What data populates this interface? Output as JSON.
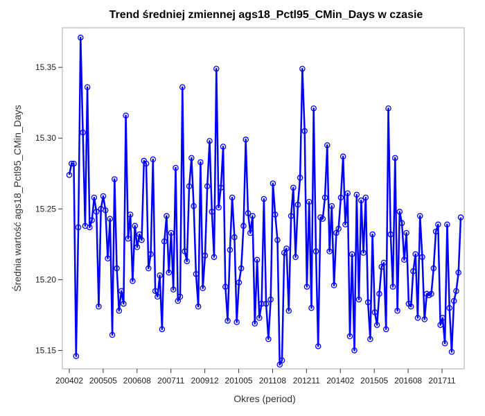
{
  "chart_data": {
    "type": "line",
    "title": "Trend średniej zmiennej ags18_Pctl95_CMin_Days w czasie",
    "xlabel": "Okres (period)",
    "ylabel": "Średnia wartość ags18_Pctl95_CMin_Days",
    "ylim": [
      15.137,
      15.378
    ],
    "y_ticks": [
      15.15,
      15.2,
      15.25,
      15.3,
      15.35
    ],
    "x_tick_labels": [
      "200402",
      "200505",
      "200608",
      "200711",
      "200912",
      "201005",
      "201108",
      "201211",
      "201402",
      "201505",
      "201608",
      "201711"
    ],
    "grid": false,
    "legend": "none",
    "marker": "circle",
    "colors": {
      "line": "#0000ff",
      "marker": "#0000ff",
      "frame": "#a9a9a9"
    },
    "series": [
      {
        "values": [
          15.274,
          15.282,
          15.282,
          15.146,
          15.237,
          15.371,
          15.304,
          15.238,
          15.336,
          15.237,
          15.242,
          15.258,
          15.248,
          15.181,
          15.25,
          15.259,
          15.249,
          15.215,
          15.243,
          15.161,
          15.271,
          15.208,
          15.178,
          15.192,
          15.183,
          15.316,
          15.229,
          15.246,
          15.199,
          15.238,
          15.223,
          15.232,
          15.228,
          15.284,
          15.282,
          15.208,
          15.218,
          15.285,
          15.192,
          15.188,
          15.203,
          15.165,
          15.227,
          15.245,
          15.205,
          15.233,
          15.193,
          15.279,
          15.185,
          15.188,
          15.336,
          15.22,
          15.213,
          15.266,
          15.286,
          15.252,
          15.204,
          15.181,
          15.283,
          15.194,
          15.217,
          15.266,
          15.298,
          15.248,
          15.216,
          15.349,
          15.251,
          15.265,
          15.294,
          15.195,
          15.171,
          15.221,
          15.258,
          15.23,
          15.17,
          15.198,
          15.208,
          15.238,
          15.299,
          15.247,
          15.233,
          15.245,
          15.169,
          15.214,
          15.173,
          15.183,
          15.257,
          15.183,
          15.158,
          15.186,
          15.268,
          15.246,
          15.228,
          15.14,
          15.143,
          15.219,
          15.222,
          15.178,
          15.245,
          15.265,
          15.216,
          15.253,
          15.272,
          15.349,
          15.305,
          15.195,
          15.255,
          15.18,
          15.321,
          15.22,
          15.153,
          15.244,
          15.243,
          15.258,
          15.295,
          15.22,
          15.252,
          15.196,
          15.233,
          15.236,
          15.258,
          15.287,
          15.239,
          15.261,
          15.16,
          15.218,
          15.15,
          15.26,
          15.186,
          15.256,
          15.219,
          15.258,
          15.184,
          15.158,
          15.232,
          15.177,
          15.168,
          15.19,
          15.209,
          15.212,
          15.165,
          15.321,
          15.232,
          15.195,
          15.286,
          15.178,
          15.248,
          15.24,
          15.214,
          15.233,
          15.183,
          15.181,
          15.206,
          15.218,
          15.173,
          15.245,
          15.216,
          15.172,
          15.19,
          15.189,
          15.19,
          15.208,
          15.234,
          15.239,
          15.168,
          15.173,
          15.155,
          15.239,
          15.18,
          15.149,
          15.185,
          15.192,
          15.205,
          15.244
        ]
      }
    ]
  }
}
